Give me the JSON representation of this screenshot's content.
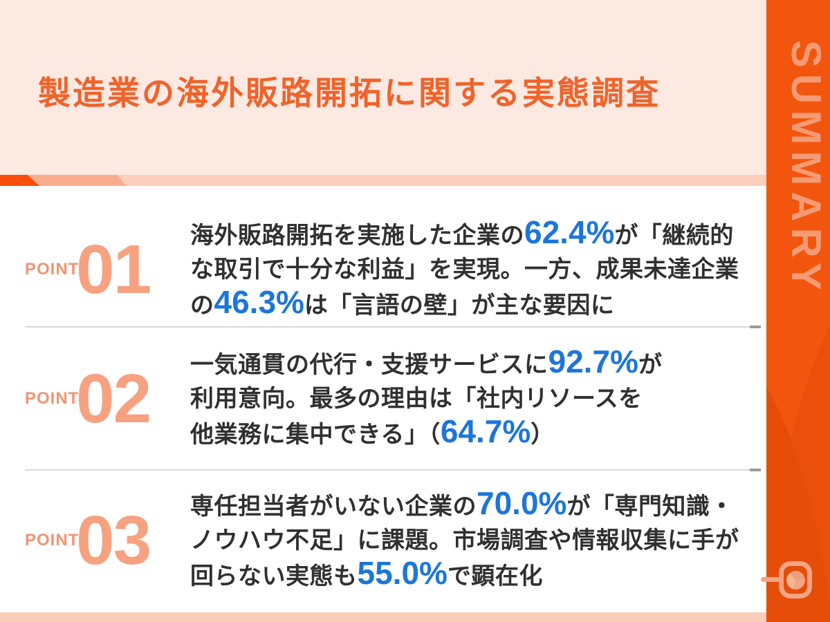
{
  "header": {
    "title": "製造業の海外販路開拓に関する実態調査"
  },
  "sidebar": {
    "label": "SUMMARY"
  },
  "points": [
    {
      "label": "POINT",
      "number": "01",
      "segments": [
        {
          "t": "海外販路開拓を実施した企業の"
        },
        {
          "t": "62.4%",
          "hl": true
        },
        {
          "t": "が「継続的"
        },
        {
          "br": true
        },
        {
          "t": "な取引で十分な利益」を実現。一方、成果未達企業"
        },
        {
          "br": true
        },
        {
          "t": "の"
        },
        {
          "t": "46.3%",
          "hl": true
        },
        {
          "t": "は「言語の壁」が主な要因に"
        }
      ]
    },
    {
      "label": "POINT",
      "number": "02",
      "segments": [
        {
          "t": "一気通貫の代行・支援サービスに"
        },
        {
          "t": "92.7%",
          "hl": true
        },
        {
          "t": "が"
        },
        {
          "br": true
        },
        {
          "t": "利用意向。最多の理由は「社内リソースを"
        },
        {
          "br": true
        },
        {
          "t": "他業務に集中できる」（"
        },
        {
          "t": "64.7%",
          "hl": true
        },
        {
          "t": "）"
        }
      ]
    },
    {
      "label": "POINT",
      "number": "03",
      "segments": [
        {
          "t": "専任担当者がいない企業の"
        },
        {
          "t": "70.0%",
          "hl": true
        },
        {
          "t": "が「専門知識・"
        },
        {
          "br": true
        },
        {
          "t": "ノウハウ不足」に課題。市場調査や情報収集に手が"
        },
        {
          "br": true
        },
        {
          "t": "回らない実態も"
        },
        {
          "t": "55.0%",
          "hl": true
        },
        {
          "t": "で顕在化"
        }
      ]
    }
  ],
  "colors": {
    "header_background": "#FCE9E2",
    "title_orange": "#F0632B",
    "sidebar_orange": "#F2560E",
    "sidebar_swoosh_dark": "#E54D08",
    "summary_label_salmon": "#F59B74",
    "point_label_salmon": "#EE9574",
    "point_number_salmon": "#F6A281",
    "stat_highlight_blue": "#1C76DA",
    "body_text": "#303030",
    "band_dark_orange": "#FB4E0D",
    "band_mid_salmon": "#FAAD8C",
    "band_light_peach": "#FBCFBB",
    "footer_strip_peach": "#FACDB9",
    "divider_gray": "#D8D8D8"
  }
}
